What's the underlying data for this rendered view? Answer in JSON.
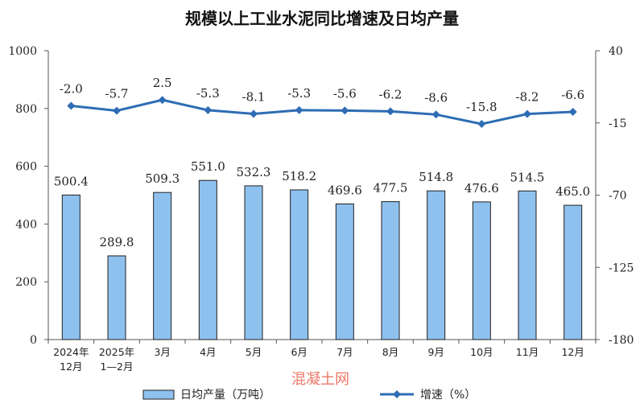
{
  "chart_data": {
    "type": "bar+line",
    "title": "规模以上工业水泥同比增速及日均产量",
    "categories": [
      [
        "2024年",
        "12月"
      ],
      [
        "2025年",
        "1—2月"
      ],
      [
        "3月"
      ],
      [
        "4月"
      ],
      [
        "5月"
      ],
      [
        "6月"
      ],
      [
        "7月"
      ],
      [
        "8月"
      ],
      [
        "9月"
      ],
      [
        "10月"
      ],
      [
        "11月"
      ],
      [
        "12月"
      ]
    ],
    "series": [
      {
        "name": "日均产量（万吨）",
        "type": "bar",
        "axis": "left",
        "color": "#8fc1ef",
        "values": [
          500.4,
          289.8,
          509.3,
          551.0,
          532.3,
          518.2,
          469.6,
          477.5,
          514.8,
          476.6,
          514.5,
          465.0
        ],
        "labels": [
          "500.4",
          "289.8",
          "509.3",
          "551.0",
          "532.3",
          "518.2",
          "469.6",
          "477.5",
          "514.8",
          "476.6",
          "514.5",
          "465.0"
        ]
      },
      {
        "name": "增速（%）",
        "type": "line",
        "axis": "right",
        "color": "#2e6db4",
        "values": [
          -2.0,
          -5.7,
          2.5,
          -5.3,
          -8.1,
          -5.3,
          -5.6,
          -6.2,
          -8.6,
          -15.8,
          -8.2,
          -6.6
        ],
        "labels": [
          "-2.0",
          "-5.7",
          "2.5",
          "-5.3",
          "-8.1",
          "-5.3",
          "-5.6",
          "-6.2",
          "-8.6",
          "-15.8",
          "-8.2",
          "-6.6"
        ]
      }
    ],
    "y_left": {
      "min": 0,
      "max": 1000,
      "ticks": [
        "0",
        "200",
        "400",
        "600",
        "800",
        "1000"
      ]
    },
    "y_right": {
      "min": -180,
      "max": 40,
      "ticks": [
        "-180",
        "-125",
        "-70",
        "-15",
        "40"
      ]
    },
    "grid": false,
    "legend_position": "bottom"
  },
  "watermark": "混凝土网"
}
